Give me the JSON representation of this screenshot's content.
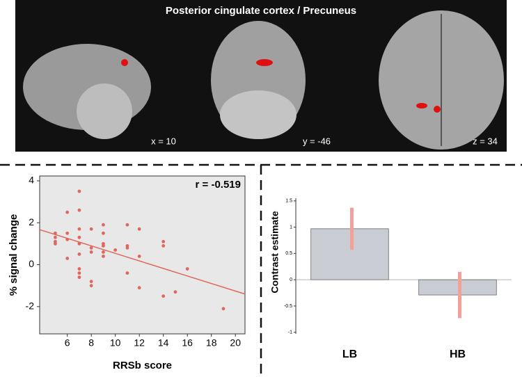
{
  "brain_panel": {
    "title": "Posterior cingulate cortex / Precuneus",
    "slices": [
      "x = 10",
      "y = -46",
      "z = 34"
    ]
  },
  "chart_data": [
    {
      "type": "scatter",
      "xlabel": "RRSb score",
      "ylabel": "% signal change",
      "annotation": "r = -0.519",
      "color": "#e0675c",
      "xlim": [
        3.7,
        20.8
      ],
      "ylim": [
        -3.3,
        4.23
      ],
      "xticks": [
        6,
        8,
        10,
        12,
        14,
        16,
        18,
        20
      ],
      "yticks": [
        -2,
        0,
        2,
        4
      ],
      "x": [
        5,
        5,
        5,
        5,
        6,
        6,
        6,
        6,
        7,
        7,
        7,
        7,
        7,
        7,
        7,
        7,
        7,
        8,
        8,
        8,
        8,
        8,
        9,
        9,
        9,
        9,
        9,
        9,
        10,
        11,
        11,
        11,
        11,
        12,
        12,
        12,
        14,
        14,
        14,
        15,
        16,
        19
      ],
      "values": [
        1.5,
        1.3,
        1.1,
        1.0,
        2.5,
        1.5,
        1.2,
        0.3,
        3.5,
        2.6,
        1.7,
        1.3,
        1.0,
        0.5,
        -0.2,
        -0.4,
        -0.6,
        1.7,
        0.8,
        0.6,
        -0.8,
        -1.0,
        1.9,
        1.5,
        1.0,
        0.9,
        0.6,
        0.4,
        0.7,
        1.9,
        0.9,
        0.8,
        -0.4,
        1.7,
        0.4,
        -1.1,
        1.1,
        0.9,
        -1.5,
        -1.3,
        -0.2,
        -2.1
      ],
      "fit_line": {
        "x": [
          3.7,
          20.8
        ],
        "values": [
          1.67,
          -1.4
        ],
        "color": "#e0675c"
      }
    },
    {
      "type": "bar",
      "ylabel": "Contrast estimate",
      "categories": [
        "LB",
        "HB"
      ],
      "values": [
        0.97,
        -0.29
      ],
      "errors": [
        0.4,
        0.44
      ],
      "color": "#c9ccd3",
      "error_color": "#f4a09a",
      "ylim": [
        -1.03,
        1.55
      ],
      "yticks": [
        -1,
        -0.5,
        0,
        0.5,
        1,
        1.5
      ]
    }
  ]
}
